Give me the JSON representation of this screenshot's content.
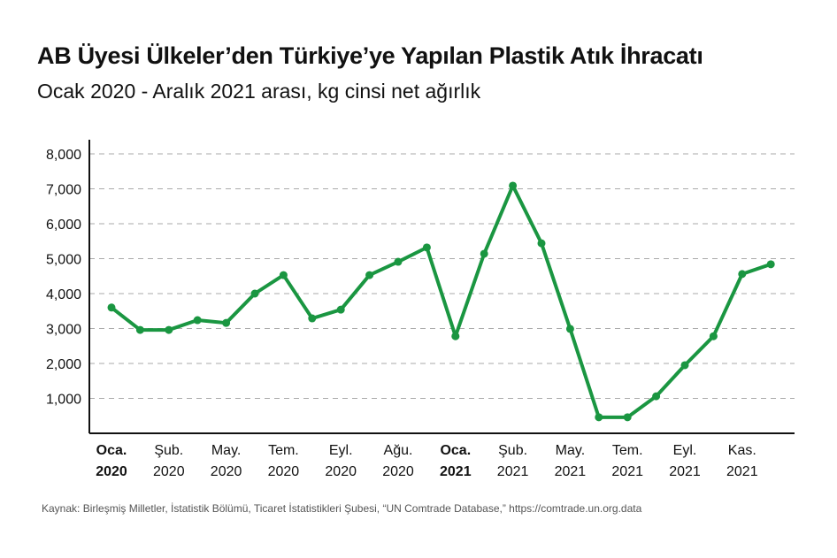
{
  "title": "AB Üyesi Ülkeler’den Türkiye’ye Yapılan Plastik Atık İhracatı",
  "subtitle": "Ocak 2020 - Aralık 2021 arası, kg cinsi net ağırlık",
  "source": "Kaynak: Birleşmiş Milletler, İstatistik Bölümü, Ticaret İstatistikleri Şubesi, “UN Comtrade Database,” https://comtrade.un.org.data",
  "colors": {
    "line": "#1a9641",
    "grid": "#aaaaaa",
    "axis": "#111111"
  },
  "chart_data": {
    "type": "line",
    "ylim": [
      0,
      8000
    ],
    "yticks": [
      "1,000",
      "2,000",
      "3,000",
      "4,000",
      "5,000",
      "6,000",
      "7,000",
      "8,000"
    ],
    "ytick_values": [
      1000,
      2000,
      3000,
      4000,
      5000,
      6000,
      7000,
      8000
    ],
    "grid": "horizontal dashed",
    "xtick_labels": [
      {
        "month": "Oca.",
        "year": "2020",
        "bold": true
      },
      {
        "month": "Şub.",
        "year": "2020"
      },
      {
        "month": "May.",
        "year": "2020"
      },
      {
        "month": "Tem.",
        "year": "2020"
      },
      {
        "month": "Eyl.",
        "year": "2020"
      },
      {
        "month": "Ağu.",
        "year": "2020"
      },
      {
        "month": "Oca.",
        "year": "2021",
        "bold": true
      },
      {
        "month": "Şub.",
        "year": "2021"
      },
      {
        "month": "May.",
        "year": "2021"
      },
      {
        "month": "Tem.",
        "year": "2021"
      },
      {
        "month": "Eyl.",
        "year": "2021"
      },
      {
        "month": "Kas.",
        "year": "2021"
      }
    ],
    "values": [
      3600,
      2960,
      2960,
      3240,
      3160,
      4000,
      4530,
      3290,
      3540,
      4530,
      4910,
      5320,
      2780,
      5140,
      7090,
      5440,
      2990,
      460,
      460,
      1060,
      1950,
      2780,
      4560,
      4840
    ]
  }
}
